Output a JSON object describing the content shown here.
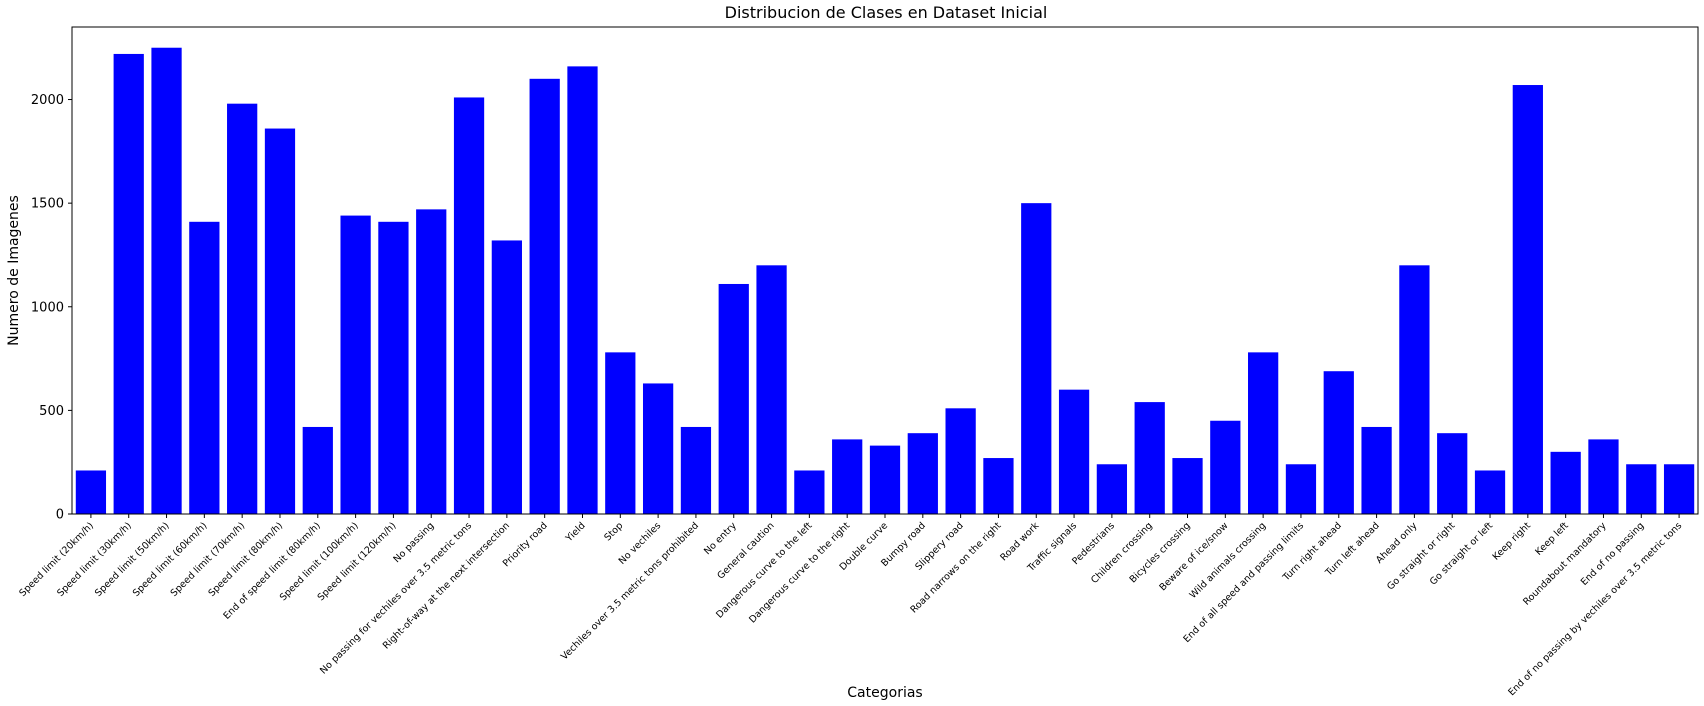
{
  "chart_data": {
    "type": "bar",
    "title": "Distribucion de Clases en Dataset Inicial",
    "xlabel": "Categorias",
    "ylabel": "Numero de Imagenes",
    "ylim": [
      0,
      2350
    ],
    "yticks": [
      0,
      500,
      1000,
      1500,
      2000
    ],
    "grid": false,
    "bar_color": "#0000ff",
    "categories": [
      "Speed limit (20km/h)",
      "Speed limit (30km/h)",
      "Speed limit (50km/h)",
      "Speed limit (60km/h)",
      "Speed limit (70km/h)",
      "Speed limit (80km/h)",
      "End of speed limit (80km/h)",
      "Speed limit (100km/h)",
      "Speed limit (120km/h)",
      "No passing",
      "No passing for vechiles over 3.5 metric tons",
      "Right-of-way at the next intersection",
      "Priority road",
      "Yield",
      "Stop",
      "No vechiles",
      "Vechiles over 3.5 metric tons prohibited",
      "No entry",
      "General caution",
      "Dangerous curve to the left",
      "Dangerous curve to the right",
      "Double curve",
      "Bumpy road",
      "Slippery road",
      "Road narrows on the right",
      "Road work",
      "Traffic signals",
      "Pedestrians",
      "Children crossing",
      "Bicycles crossing",
      "Beware of ice/snow",
      "Wild animals crossing",
      "End of all speed and passing limits",
      "Turn right ahead",
      "Turn left ahead",
      "Ahead only",
      "Go straight or right",
      "Go straight or left",
      "Keep right",
      "Keep left",
      "Roundabout mandatory",
      "End of no passing",
      "End of no passing by vechiles over 3.5 metric tons"
    ],
    "values": [
      210,
      2220,
      2250,
      1410,
      1980,
      1860,
      420,
      1440,
      1410,
      1470,
      2010,
      1320,
      2100,
      2160,
      780,
      630,
      420,
      1110,
      1200,
      210,
      360,
      330,
      390,
      510,
      270,
      1500,
      600,
      240,
      540,
      270,
      450,
      780,
      240,
      689,
      420,
      1200,
      390,
      210,
      2070,
      300,
      360,
      240,
      240
    ]
  }
}
